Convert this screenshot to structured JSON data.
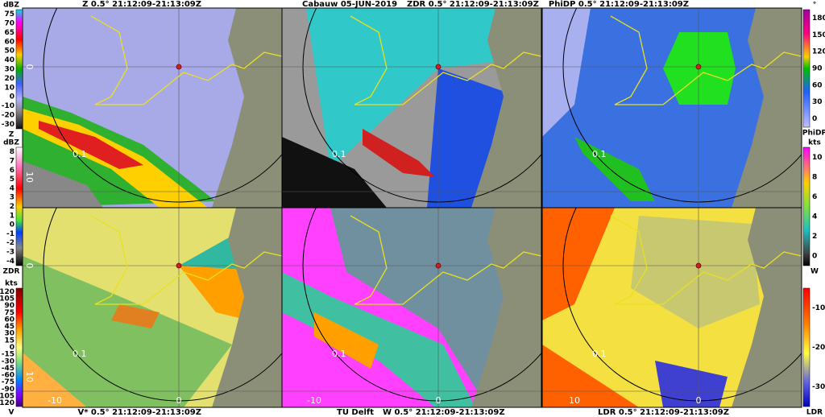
{
  "header": {
    "site": "Cabauw  05-JUN-2019",
    "credit": "TU Delft"
  },
  "panels": [
    {
      "title": "Z 0.5°  21:12:09-21:13:09Z",
      "ring_label": "0.1",
      "side_labels": [
        "0",
        "10"
      ]
    },
    {
      "title": "ZDR 0.5°  21:12:09-21:13:09Z",
      "ring_label": "0.1"
    },
    {
      "title": "PhiDP 0.5°  21:12:09-21:13:09Z",
      "ring_label": "0.1"
    },
    {
      "title": "V* 0.5°  21:12:09-21:13:09Z",
      "ring_label": "0.1",
      "side_labels": [
        "0",
        "10"
      ],
      "bottom_labels": [
        "-10",
        "0"
      ]
    },
    {
      "title": "W 0.5°  21:12:09-21:13:09Z",
      "ring_label": "0.1",
      "bottom_labels": [
        "-10",
        "0"
      ]
    },
    {
      "title": "LDR 0.5°  21:12:09-21:13:09Z",
      "ring_label": "0.1",
      "bottom_labels": [
        "10",
        "0"
      ]
    }
  ],
  "colorbars": [
    {
      "unit": "dBZ",
      "label": "Z",
      "ticks": [
        75,
        70,
        65,
        60,
        50,
        40,
        30,
        20,
        10,
        0,
        -10,
        -20,
        -30
      ]
    },
    {
      "unit": "dBZ",
      "label": "ZDR",
      "ticks": [
        8,
        7,
        6,
        5,
        4,
        3,
        2,
        1,
        0,
        -1,
        -2,
        -3,
        -4
      ]
    },
    {
      "unit": "kts",
      "label": "V",
      "ticks": [
        120,
        105,
        90,
        75,
        60,
        45,
        30,
        15,
        0,
        -15,
        -30,
        -45,
        -60,
        -75,
        -90,
        -105,
        -120
      ]
    },
    {
      "unit": "°",
      "label": "PhiDP",
      "ticks": [
        180,
        150,
        120,
        90,
        60,
        30,
        0
      ]
    },
    {
      "unit": "kts",
      "label": "W",
      "ticks": [
        10,
        8,
        6,
        4,
        2,
        0
      ]
    },
    {
      "label": "LDR",
      "ticks": [
        -10,
        -20,
        -30
      ]
    }
  ]
}
